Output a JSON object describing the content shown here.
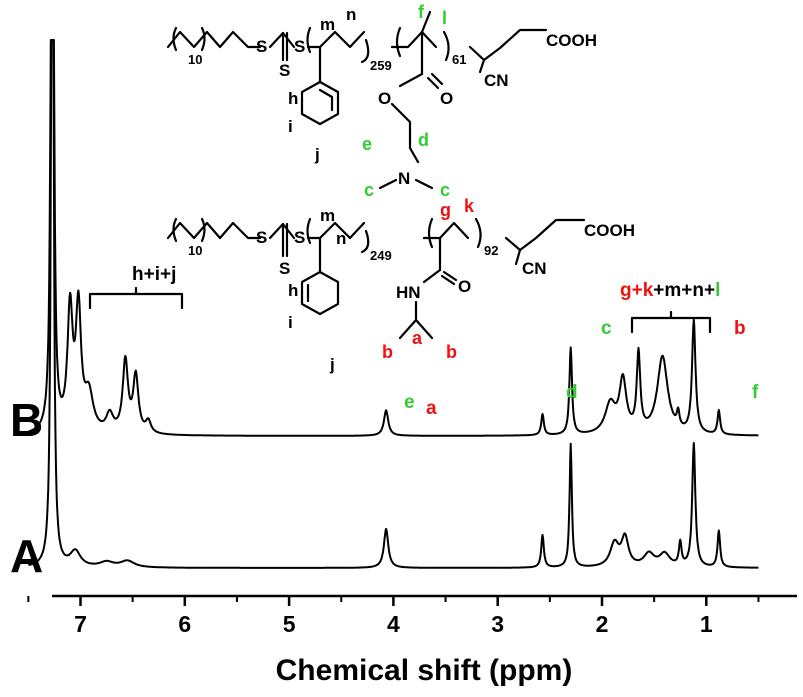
{
  "colors": {
    "green": "#33cc33",
    "red": "#ee1111",
    "black": "#000000"
  },
  "chart_data": {
    "type": "line",
    "xlabel": "Chemical shift (ppm)",
    "xlim": [
      7.5,
      0.5
    ],
    "x_reversed": true,
    "x_ticks": [
      7,
      6,
      5,
      4,
      3,
      2,
      1
    ],
    "series": [
      {
        "name": "A",
        "baseline": 0.0,
        "peaks": [
          {
            "x": 7.27,
            "h": 10.0,
            "w": 0.01
          },
          {
            "x": 7.05,
            "h": 0.12,
            "w": 0.06
          },
          {
            "x": 6.75,
            "h": 0.04,
            "w": 0.08
          },
          {
            "x": 6.55,
            "h": 0.05,
            "w": 0.08
          },
          {
            "x": 4.07,
            "h": 0.3,
            "w": 0.025
          },
          {
            "x": 2.57,
            "h": 0.25,
            "w": 0.015
          },
          {
            "x": 2.3,
            "h": 0.95,
            "w": 0.013
          },
          {
            "x": 1.88,
            "h": 0.18,
            "w": 0.05
          },
          {
            "x": 1.78,
            "h": 0.22,
            "w": 0.04
          },
          {
            "x": 1.55,
            "h": 0.1,
            "w": 0.06
          },
          {
            "x": 1.4,
            "h": 0.1,
            "w": 0.06
          },
          {
            "x": 1.25,
            "h": 0.18,
            "w": 0.015
          },
          {
            "x": 1.12,
            "h": 0.95,
            "w": 0.018
          },
          {
            "x": 0.88,
            "h": 0.28,
            "w": 0.015
          }
        ]
      },
      {
        "name": "B",
        "baseline": 0.0,
        "peaks": [
          {
            "x": 7.27,
            "h": 10.0,
            "w": 0.01
          },
          {
            "x": 7.1,
            "h": 0.8,
            "w": 0.03
          },
          {
            "x": 7.02,
            "h": 0.8,
            "w": 0.03
          },
          {
            "x": 6.92,
            "h": 0.25,
            "w": 0.05
          },
          {
            "x": 6.72,
            "h": 0.12,
            "w": 0.04
          },
          {
            "x": 6.57,
            "h": 0.48,
            "w": 0.03
          },
          {
            "x": 6.47,
            "h": 0.38,
            "w": 0.03
          },
          {
            "x": 6.35,
            "h": 0.08,
            "w": 0.03
          },
          {
            "x": 4.07,
            "h": 0.17,
            "w": 0.025
          },
          {
            "x": 2.57,
            "h": 0.14,
            "w": 0.015
          },
          {
            "x": 2.3,
            "h": 0.58,
            "w": 0.015
          },
          {
            "x": 1.92,
            "h": 0.2,
            "w": 0.06
          },
          {
            "x": 1.8,
            "h": 0.35,
            "w": 0.04
          },
          {
            "x": 1.65,
            "h": 0.52,
            "w": 0.02
          },
          {
            "x": 1.42,
            "h": 0.52,
            "w": 0.06
          },
          {
            "x": 1.27,
            "h": 0.1,
            "w": 0.015
          },
          {
            "x": 1.12,
            "h": 0.75,
            "w": 0.02
          },
          {
            "x": 0.88,
            "h": 0.16,
            "w": 0.015
          }
        ]
      }
    ],
    "annotations": {
      "h_i_j": "h+i+j",
      "e": "e",
      "a": "a",
      "d": "d",
      "c": "c",
      "multi_part1": "g+k",
      "multi_part2": "+m+n+",
      "multi_part3": "l",
      "b": "b",
      "f": "f"
    },
    "grid": false
  },
  "structures": {
    "top": {
      "subscripts": {
        "chain": "10",
        "styrene": "259",
        "second_block": "61"
      },
      "groups": {
        "cooh": "COOH",
        "cn": "CN",
        "s": "S",
        "o": "O",
        "n": "N"
      },
      "labels": {
        "f": "f",
        "l": "l",
        "n": "n",
        "m": "m",
        "h": "h",
        "i": "i",
        "j": "j",
        "e": "e",
        "d": "d",
        "c1": "c",
        "c2": "c"
      }
    },
    "bottom": {
      "subscripts": {
        "chain": "10",
        "styrene": "249",
        "second_block": "92"
      },
      "groups": {
        "cooh": "COOH",
        "cn": "CN",
        "s": "S",
        "o": "O",
        "hn": "HN"
      },
      "labels": {
        "g": "g",
        "k": "k",
        "n": "n",
        "m": "m",
        "h": "h",
        "i": "i",
        "j": "j",
        "a": "a",
        "b1": "b",
        "b2": "b"
      }
    }
  }
}
